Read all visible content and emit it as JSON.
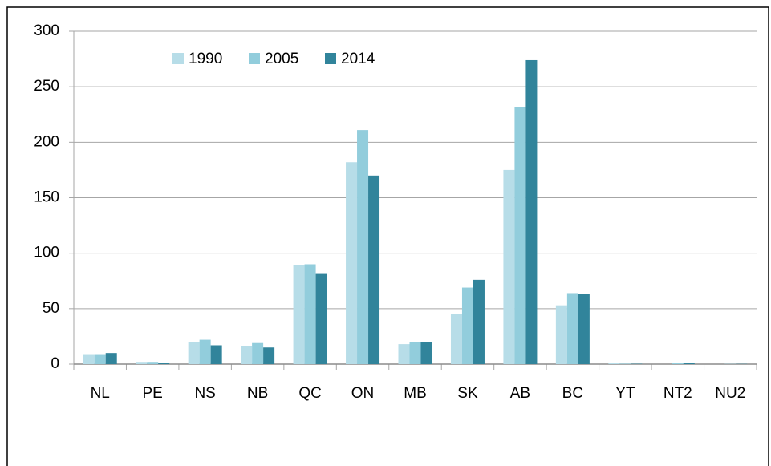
{
  "chart_data": {
    "type": "bar",
    "categories": [
      "NL",
      "PE",
      "NS",
      "NB",
      "QC",
      "ON",
      "MB",
      "SK",
      "AB",
      "BC",
      "YT",
      "NT2",
      "NU2"
    ],
    "series": [
      {
        "name": "1990",
        "color": "#b7dde8",
        "values": [
          9,
          2,
          20,
          16,
          89,
          182,
          18,
          45,
          175,
          53,
          1,
          0,
          0
        ]
      },
      {
        "name": "2005",
        "color": "#92cddc",
        "values": [
          9,
          2,
          22,
          19,
          90,
          211,
          20,
          69,
          232,
          64,
          0.4,
          1,
          0.2
        ]
      },
      {
        "name": "2014",
        "color": "#31849b",
        "values": [
          10,
          1,
          17,
          15,
          82,
          170,
          20,
          76,
          274,
          63,
          0.3,
          1.3,
          0.2
        ]
      }
    ],
    "ylim": [
      0,
      300
    ],
    "yticks": [
      0,
      50,
      100,
      150,
      200,
      250,
      300
    ],
    "grid": true,
    "legend": "top-left"
  }
}
